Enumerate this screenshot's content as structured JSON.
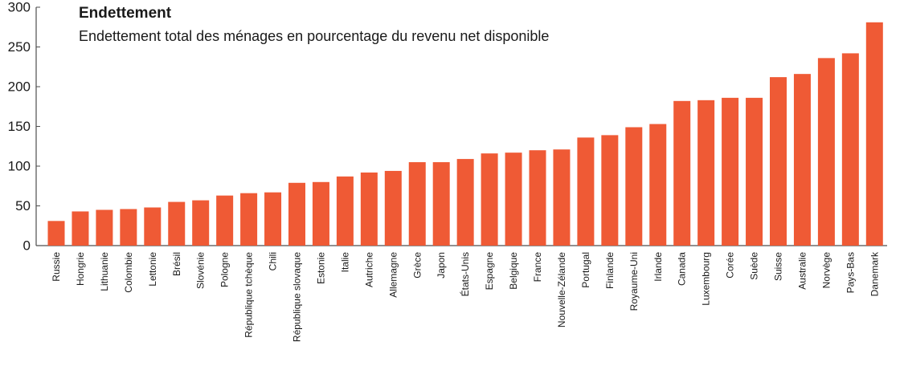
{
  "chart_data": {
    "type": "bar",
    "title": "Endettement",
    "subtitle": "Endettement total des ménages en pourcentage du revenu net disponible",
    "xlabel": "",
    "ylabel": "",
    "ylim": [
      0,
      300
    ],
    "yticks": [
      0,
      50,
      100,
      150,
      200,
      250,
      300
    ],
    "grid": false,
    "bar_color": "#ef5a35",
    "axis_color": "#4d4d4d",
    "categories": [
      "Russie",
      "Hongrie",
      "Lithuanie",
      "Colombie",
      "Lettonie",
      "Brésil",
      "Slovénie",
      "Pologne",
      "République tchèque",
      "Chili",
      "République slovaque",
      "Estonie",
      "Italie",
      "Autriche",
      "Allemagne",
      "Grèce",
      "Japon",
      "États-Unis",
      "Espagne",
      "Belgique",
      "France",
      "Nouvelle-Zélande",
      "Portugal",
      "Finlande",
      "Royaume-Uni",
      "Irlande",
      "Canada",
      "Luxembourg",
      "Corée",
      "Suède",
      "Suisse",
      "Australie",
      "Norvège",
      "Pays-Bas",
      "Danemark"
    ],
    "values": [
      31,
      43,
      45,
      46,
      48,
      55,
      57,
      63,
      66,
      67,
      79,
      80,
      87,
      92,
      94,
      105,
      105,
      109,
      116,
      117,
      120,
      121,
      136,
      139,
      149,
      153,
      182,
      183,
      186,
      186,
      212,
      216,
      236,
      242,
      281
    ]
  }
}
